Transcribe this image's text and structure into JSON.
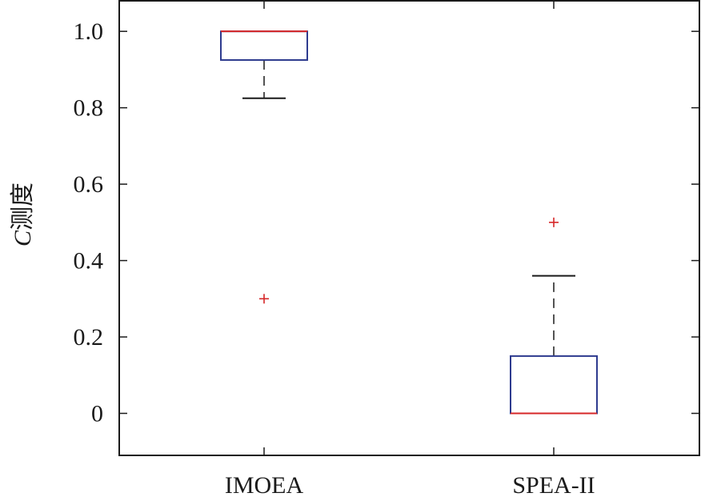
{
  "chart_data": {
    "type": "box",
    "ylabel_italic": "C",
    "ylabel_rest": "测度",
    "ylim": [
      -0.11,
      1.08
    ],
    "yticks": [
      0,
      0.2,
      0.4,
      0.6,
      0.8,
      1.0
    ],
    "ytick_labels": [
      "0",
      "0.2",
      "0.4",
      "0.6",
      "0.8",
      "1.0"
    ],
    "categories": [
      "IMOEA",
      "SPEA-II"
    ],
    "boxes": [
      {
        "category": "IMOEA",
        "lower_whisker": 0.825,
        "q1": 0.925,
        "median": 1.0,
        "q3": 1.0,
        "upper_whisker": 1.0,
        "outliers": [
          0.3
        ]
      },
      {
        "category": "SPEA-II",
        "lower_whisker": 0.0,
        "q1": 0.0,
        "median": 0.0,
        "q3": 0.15,
        "upper_whisker": 0.36,
        "outliers": [
          0.5
        ]
      }
    ],
    "grid": false,
    "colors": {
      "box": "#2e3b8f",
      "median": "#d62728",
      "whisker": "#1a1a1a",
      "outlier": "#d62728",
      "axis": "#1a1a1a"
    }
  }
}
